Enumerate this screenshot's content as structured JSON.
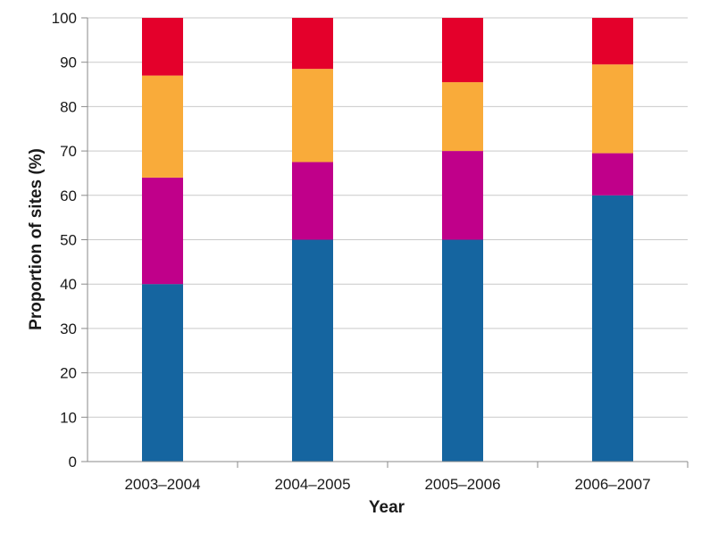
{
  "chart_data": {
    "type": "bar",
    "stacked": true,
    "title": "",
    "xlabel": "Year",
    "ylabel": "Proportion of sites (%)",
    "ylim": [
      0,
      100
    ],
    "yticks": [
      "0",
      "10",
      "20",
      "30",
      "40",
      "50",
      "60",
      "70",
      "80",
      "90",
      "100"
    ],
    "grid": "horizontal",
    "categories": [
      "2003–2004",
      "2004–2005",
      "2005–2006",
      "2006–2007"
    ],
    "series": [
      {
        "color": "#1565a0",
        "values": [
          40,
          50,
          50,
          60
        ]
      },
      {
        "color": "#c0008a",
        "values": [
          24,
          17.5,
          20,
          9.5
        ]
      },
      {
        "color": "#f9ab3a",
        "values": [
          23,
          21,
          15.5,
          20
        ]
      },
      {
        "color": "#e4002b",
        "values": [
          13,
          11.5,
          14.5,
          10.5
        ]
      }
    ]
  }
}
